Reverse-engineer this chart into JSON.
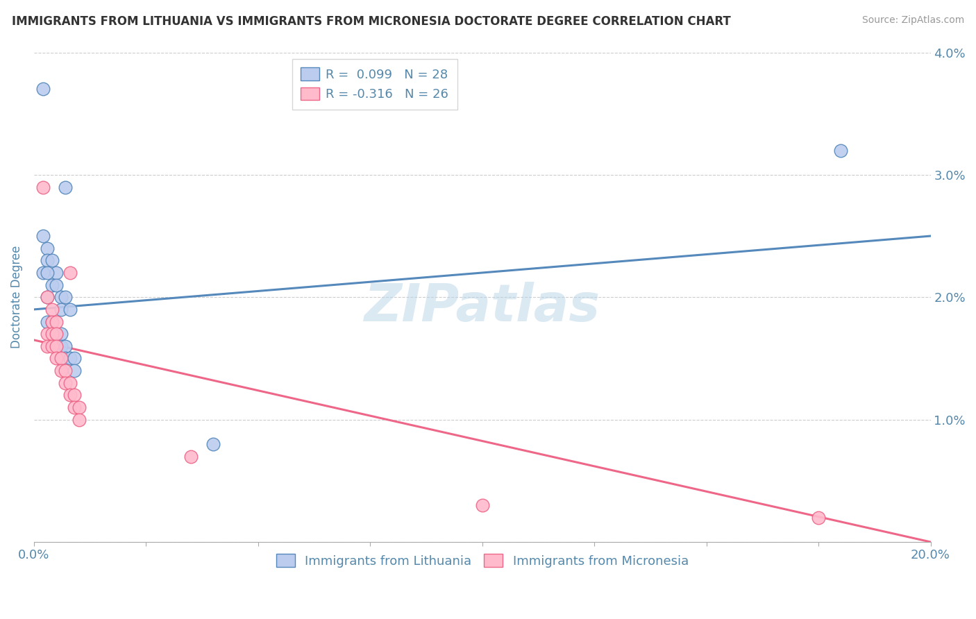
{
  "title": "IMMIGRANTS FROM LITHUANIA VS IMMIGRANTS FROM MICRONESIA DOCTORATE DEGREE CORRELATION CHART",
  "source": "Source: ZipAtlas.com",
  "xlabel_blue": "Immigrants from Lithuania",
  "xlabel_pink": "Immigrants from Micronesia",
  "ylabel": "Doctorate Degree",
  "legend_blue": "R =  0.099   N = 28",
  "legend_pink": "R = -0.316   N = 26",
  "xlim": [
    0.0,
    0.2
  ],
  "ylim": [
    0.0,
    0.04
  ],
  "xticks": [
    0.0,
    0.025,
    0.05,
    0.075,
    0.1,
    0.125,
    0.15,
    0.175,
    0.2
  ],
  "yticks": [
    0.0,
    0.01,
    0.02,
    0.03,
    0.04
  ],
  "blue_points": [
    [
      0.002,
      0.037
    ],
    [
      0.007,
      0.029
    ],
    [
      0.002,
      0.025
    ],
    [
      0.003,
      0.024
    ],
    [
      0.003,
      0.023
    ],
    [
      0.004,
      0.023
    ],
    [
      0.005,
      0.022
    ],
    [
      0.002,
      0.022
    ],
    [
      0.003,
      0.022
    ],
    [
      0.004,
      0.021
    ],
    [
      0.005,
      0.021
    ],
    [
      0.003,
      0.02
    ],
    [
      0.006,
      0.02
    ],
    [
      0.007,
      0.02
    ],
    [
      0.006,
      0.019
    ],
    [
      0.008,
      0.019
    ],
    [
      0.003,
      0.018
    ],
    [
      0.004,
      0.018
    ],
    [
      0.005,
      0.017
    ],
    [
      0.006,
      0.017
    ],
    [
      0.006,
      0.016
    ],
    [
      0.007,
      0.016
    ],
    [
      0.007,
      0.015
    ],
    [
      0.008,
      0.015
    ],
    [
      0.009,
      0.015
    ],
    [
      0.009,
      0.014
    ],
    [
      0.04,
      0.008
    ],
    [
      0.18,
      0.032
    ]
  ],
  "pink_points": [
    [
      0.002,
      0.029
    ],
    [
      0.008,
      0.022
    ],
    [
      0.003,
      0.02
    ],
    [
      0.004,
      0.019
    ],
    [
      0.004,
      0.018
    ],
    [
      0.005,
      0.018
    ],
    [
      0.003,
      0.017
    ],
    [
      0.004,
      0.017
    ],
    [
      0.005,
      0.017
    ],
    [
      0.003,
      0.016
    ],
    [
      0.004,
      0.016
    ],
    [
      0.005,
      0.016
    ],
    [
      0.005,
      0.015
    ],
    [
      0.006,
      0.015
    ],
    [
      0.006,
      0.014
    ],
    [
      0.007,
      0.014
    ],
    [
      0.007,
      0.013
    ],
    [
      0.008,
      0.013
    ],
    [
      0.008,
      0.012
    ],
    [
      0.009,
      0.012
    ],
    [
      0.009,
      0.011
    ],
    [
      0.01,
      0.011
    ],
    [
      0.01,
      0.01
    ],
    [
      0.035,
      0.007
    ],
    [
      0.1,
      0.003
    ],
    [
      0.175,
      0.002
    ]
  ],
  "blue_line_x": [
    0.0,
    0.2
  ],
  "blue_line_y": [
    0.019,
    0.025
  ],
  "pink_line_x": [
    0.0,
    0.2
  ],
  "pink_line_y": [
    0.0165,
    0.0
  ],
  "blue_color": "#5588bb",
  "pink_color": "#ee6688",
  "blue_fill": "#bbccee",
  "pink_fill": "#ffbbcc",
  "grid_color": "#cccccc",
  "axis_color": "#5588aa",
  "watermark": "ZIPatlas",
  "watermark_color": "#b8d4e8"
}
